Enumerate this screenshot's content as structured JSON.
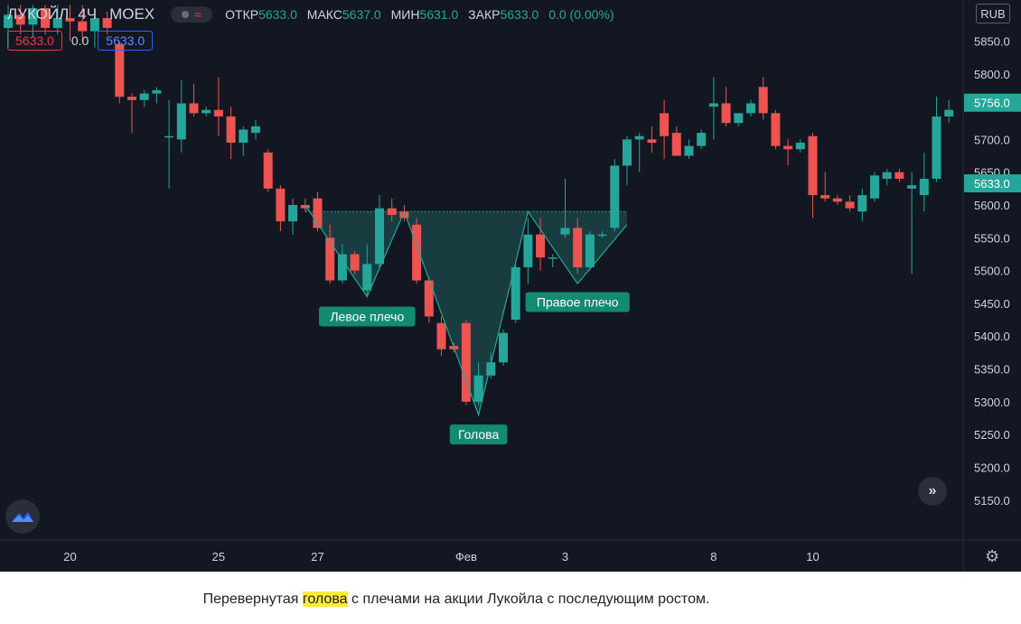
{
  "legend": {
    "symbol": "ЛУКОЙЛ",
    "timeframe": "4Ч",
    "exchange": "MOEX",
    "wave_glyph": "≈",
    "open_label": "ОТКР",
    "open": "5633.0",
    "high_label": "МАКС",
    "high": "5637.0",
    "low_label": "МИН",
    "low": "5631.0",
    "close_label": "ЗАКР",
    "close": "5633.0",
    "change": "0.0 (0.00%)"
  },
  "price_boxes": {
    "bid": "5633.0",
    "spread": "0.0",
    "ask": "5633.0"
  },
  "currency": "RUB",
  "nav_glyph": "»",
  "settings_glyph": "⚙",
  "caption": {
    "before": "Перевернутая ",
    "highlight": "голова",
    "after": " с плечами на акции Лукойла с последующим ростом."
  },
  "colors": {
    "background": "#131722",
    "up": "#26a69a",
    "down": "#ef5350",
    "label_bg": "#138a72",
    "pattern_fill": "#1b4a4a"
  },
  "chart_data": {
    "type": "candlestick",
    "ylim": [
      5100,
      5900
    ],
    "y_ticks": [
      5150,
      5200,
      5250,
      5300,
      5350,
      5400,
      5450,
      5500,
      5550,
      5600,
      5650,
      5700,
      5750,
      5800,
      5850
    ],
    "x_tick_labels": [
      {
        "label": "20",
        "index": 5
      },
      {
        "label": "25",
        "index": 17
      },
      {
        "label": "27",
        "index": 25
      },
      {
        "label": "Фев",
        "index": 37
      },
      {
        "label": "3",
        "index": 45
      },
      {
        "label": "8",
        "index": 57
      },
      {
        "label": "10",
        "index": 65
      }
    ],
    "candles": [
      {
        "o": 5870,
        "h": 5905,
        "l": 5840,
        "c": 5890
      },
      {
        "o": 5890,
        "h": 5905,
        "l": 5860,
        "c": 5875
      },
      {
        "o": 5875,
        "h": 5905,
        "l": 5855,
        "c": 5900
      },
      {
        "o": 5900,
        "h": 5905,
        "l": 5860,
        "c": 5870
      },
      {
        "o": 5870,
        "h": 5905,
        "l": 5860,
        "c": 5885
      },
      {
        "o": 5885,
        "h": 5905,
        "l": 5850,
        "c": 5880
      },
      {
        "o": 5880,
        "h": 5905,
        "l": 5850,
        "c": 5865
      },
      {
        "o": 5865,
        "h": 5900,
        "l": 5840,
        "c": 5885
      },
      {
        "o": 5885,
        "h": 5895,
        "l": 5860,
        "c": 5870
      },
      {
        "o": 5845,
        "h": 5850,
        "l": 5755,
        "c": 5765
      },
      {
        "o": 5765,
        "h": 5770,
        "l": 5710,
        "c": 5760
      },
      {
        "o": 5760,
        "h": 5775,
        "l": 5750,
        "c": 5770
      },
      {
        "o": 5770,
        "h": 5780,
        "l": 5755,
        "c": 5775
      },
      {
        "o": 5705,
        "h": 5760,
        "l": 5625,
        "c": 5705
      },
      {
        "o": 5700,
        "h": 5790,
        "l": 5680,
        "c": 5755
      },
      {
        "o": 5755,
        "h": 5785,
        "l": 5735,
        "c": 5740
      },
      {
        "o": 5740,
        "h": 5750,
        "l": 5735,
        "c": 5745
      },
      {
        "o": 5745,
        "h": 5795,
        "l": 5705,
        "c": 5735
      },
      {
        "o": 5735,
        "h": 5750,
        "l": 5670,
        "c": 5695
      },
      {
        "o": 5695,
        "h": 5720,
        "l": 5675,
        "c": 5715
      },
      {
        "o": 5710,
        "h": 5730,
        "l": 5700,
        "c": 5720
      },
      {
        "o": 5680,
        "h": 5685,
        "l": 5620,
        "c": 5625
      },
      {
        "o": 5625,
        "h": 5630,
        "l": 5560,
        "c": 5575
      },
      {
        "o": 5575,
        "h": 5610,
        "l": 5555,
        "c": 5600
      },
      {
        "o": 5600,
        "h": 5610,
        "l": 5590,
        "c": 5595
      },
      {
        "o": 5610,
        "h": 5620,
        "l": 5560,
        "c": 5565
      },
      {
        "o": 5550,
        "h": 5570,
        "l": 5480,
        "c": 5485
      },
      {
        "o": 5485,
        "h": 5540,
        "l": 5480,
        "c": 5525
      },
      {
        "o": 5525,
        "h": 5530,
        "l": 5495,
        "c": 5500
      },
      {
        "o": 5470,
        "h": 5540,
        "l": 5460,
        "c": 5510
      },
      {
        "o": 5510,
        "h": 5615,
        "l": 5505,
        "c": 5595
      },
      {
        "o": 5595,
        "h": 5610,
        "l": 5575,
        "c": 5585
      },
      {
        "o": 5590,
        "h": 5600,
        "l": 5575,
        "c": 5580
      },
      {
        "o": 5570,
        "h": 5580,
        "l": 5480,
        "c": 5485
      },
      {
        "o": 5485,
        "h": 5490,
        "l": 5420,
        "c": 5430
      },
      {
        "o": 5420,
        "h": 5430,
        "l": 5370,
        "c": 5380
      },
      {
        "o": 5385,
        "h": 5390,
        "l": 5375,
        "c": 5380
      },
      {
        "o": 5420,
        "h": 5425,
        "l": 5295,
        "c": 5300
      },
      {
        "o": 5300,
        "h": 5360,
        "l": 5295,
        "c": 5340
      },
      {
        "o": 5340,
        "h": 5375,
        "l": 5335,
        "c": 5360
      },
      {
        "o": 5360,
        "h": 5410,
        "l": 5355,
        "c": 5405
      },
      {
        "o": 5425,
        "h": 5510,
        "l": 5420,
        "c": 5505
      },
      {
        "o": 5505,
        "h": 5580,
        "l": 5480,
        "c": 5555
      },
      {
        "o": 5555,
        "h": 5580,
        "l": 5500,
        "c": 5520
      },
      {
        "o": 5520,
        "h": 5525,
        "l": 5505,
        "c": 5520
      },
      {
        "o": 5555,
        "h": 5640,
        "l": 5550,
        "c": 5565
      },
      {
        "o": 5565,
        "h": 5580,
        "l": 5495,
        "c": 5505
      },
      {
        "o": 5505,
        "h": 5560,
        "l": 5500,
        "c": 5555
      },
      {
        "o": 5555,
        "h": 5560,
        "l": 5550,
        "c": 5555
      },
      {
        "o": 5565,
        "h": 5670,
        "l": 5560,
        "c": 5660
      },
      {
        "o": 5660,
        "h": 5705,
        "l": 5630,
        "c": 5700
      },
      {
        "o": 5700,
        "h": 5710,
        "l": 5650,
        "c": 5705
      },
      {
        "o": 5700,
        "h": 5720,
        "l": 5680,
        "c": 5695
      },
      {
        "o": 5740,
        "h": 5760,
        "l": 5670,
        "c": 5705
      },
      {
        "o": 5710,
        "h": 5720,
        "l": 5675,
        "c": 5675
      },
      {
        "o": 5675,
        "h": 5700,
        "l": 5670,
        "c": 5690
      },
      {
        "o": 5690,
        "h": 5715,
        "l": 5685,
        "c": 5710
      },
      {
        "o": 5750,
        "h": 5795,
        "l": 5700,
        "c": 5755
      },
      {
        "o": 5755,
        "h": 5780,
        "l": 5720,
        "c": 5725
      },
      {
        "o": 5725,
        "h": 5740,
        "l": 5720,
        "c": 5740
      },
      {
        "o": 5740,
        "h": 5760,
        "l": 5735,
        "c": 5755
      },
      {
        "o": 5780,
        "h": 5795,
        "l": 5730,
        "c": 5740
      },
      {
        "o": 5740,
        "h": 5745,
        "l": 5685,
        "c": 5690
      },
      {
        "o": 5690,
        "h": 5700,
        "l": 5660,
        "c": 5685
      },
      {
        "o": 5685,
        "h": 5700,
        "l": 5680,
        "c": 5695
      },
      {
        "o": 5705,
        "h": 5710,
        "l": 5580,
        "c": 5615
      },
      {
        "o": 5615,
        "h": 5650,
        "l": 5605,
        "c": 5610
      },
      {
        "o": 5610,
        "h": 5615,
        "l": 5600,
        "c": 5605
      },
      {
        "o": 5605,
        "h": 5615,
        "l": 5590,
        "c": 5595
      },
      {
        "o": 5590,
        "h": 5625,
        "l": 5575,
        "c": 5615
      },
      {
        "o": 5610,
        "h": 5650,
        "l": 5605,
        "c": 5645
      },
      {
        "o": 5640,
        "h": 5655,
        "l": 5630,
        "c": 5650
      },
      {
        "o": 5650,
        "h": 5655,
        "l": 5635,
        "c": 5640
      },
      {
        "o": 5625,
        "h": 5650,
        "l": 5495,
        "c": 5630
      },
      {
        "o": 5615,
        "h": 5680,
        "l": 5590,
        "c": 5640
      },
      {
        "o": 5640,
        "h": 5765,
        "l": 5635,
        "c": 5735
      },
      {
        "o": 5735,
        "h": 5760,
        "l": 5725,
        "c": 5745
      }
    ],
    "price_markers": [
      {
        "value": 5756,
        "label": "5756.0"
      },
      {
        "value": 5633,
        "label": "5633.0"
      }
    ],
    "neckline": 5590,
    "pattern": {
      "points": [
        {
          "index": 24,
          "value": 5600
        },
        {
          "index": 29,
          "value": 5460
        },
        {
          "index": 32,
          "value": 5590
        },
        {
          "index": 38,
          "value": 5280
        },
        {
          "index": 42,
          "value": 5590
        },
        {
          "index": 46,
          "value": 5480
        },
        {
          "index": 50,
          "value": 5570
        }
      ],
      "labels": [
        {
          "text": "Левое плечо",
          "index": 29,
          "value": 5430
        },
        {
          "text": "Голова",
          "index": 38,
          "value": 5250
        },
        {
          "text": "Правое плечо",
          "index": 46,
          "value": 5452
        }
      ]
    }
  }
}
